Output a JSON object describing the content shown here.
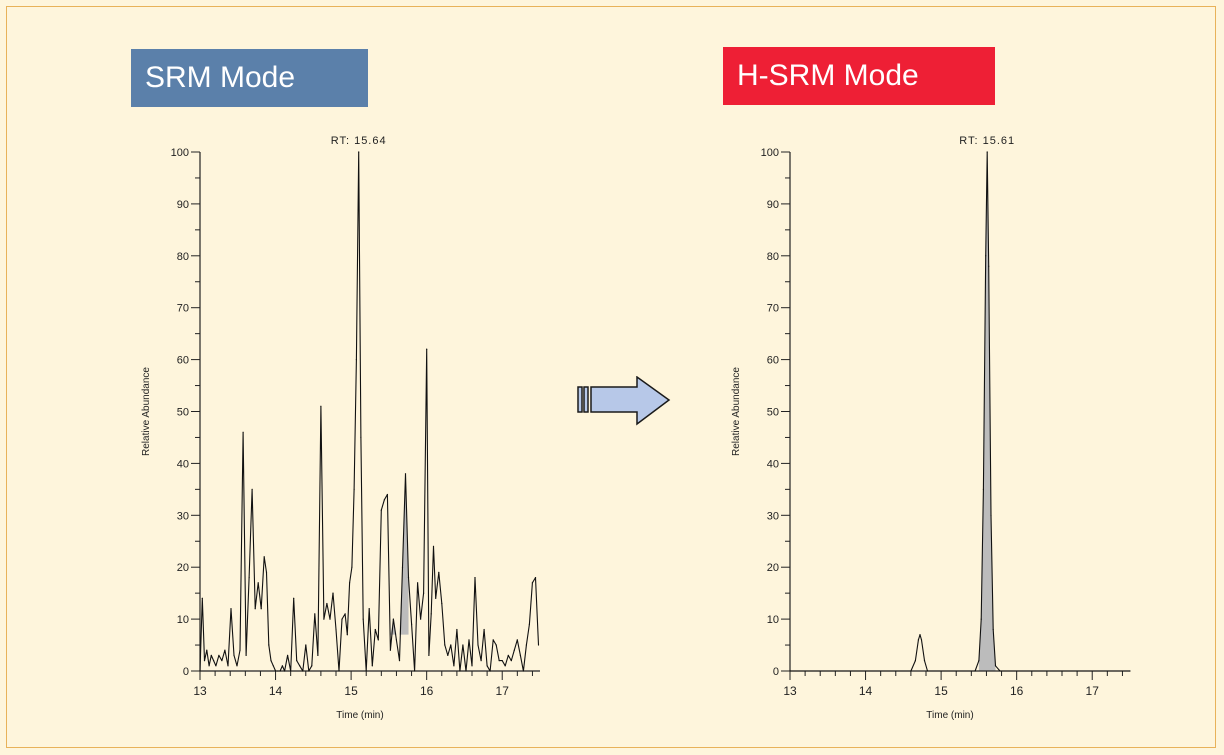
{
  "panels": {
    "left": {
      "title": "SRM Mode",
      "color": "#5b80aa"
    },
    "right": {
      "title": "H-SRM Mode",
      "color": "#ee1f35"
    }
  },
  "arrow": {
    "icon": "right-arrow-icon",
    "fill": "#b7c8e8",
    "stroke": "#1a1a1a"
  },
  "chart_data": [
    {
      "type": "line",
      "title": "",
      "annotation": "RT: 15.64",
      "xlabel": "Time (min)",
      "ylabel": "Relative Abundance",
      "xlim": [
        13,
        17.5
      ],
      "ylim": [
        0,
        100
      ],
      "x_ticks": [
        13,
        14,
        15,
        16,
        17
      ],
      "y_ticks": [
        0,
        10,
        20,
        30,
        40,
        50,
        60,
        70,
        80,
        90,
        100
      ],
      "shaded_peak": {
        "from": 15.5,
        "to": 15.76,
        "baseline": 7
      },
      "series": [
        {
          "x": [
            13.0,
            13.03,
            13.06,
            13.09,
            13.12,
            13.15,
            13.18,
            13.21,
            13.25,
            13.29,
            13.33,
            13.37,
            13.41,
            13.45,
            13.49,
            13.53,
            13.57,
            13.61,
            13.65,
            13.69,
            13.73,
            13.77,
            13.81,
            13.85,
            13.88,
            13.91,
            13.94,
            13.97,
            14.0,
            14.03,
            14.06,
            14.09,
            14.12,
            14.16,
            14.2,
            14.24,
            14.28,
            14.32,
            14.36,
            14.4,
            14.44,
            14.48,
            14.52,
            14.56,
            14.6,
            14.64,
            14.68,
            14.72,
            14.76,
            14.8,
            14.84,
            14.88,
            14.92,
            14.95,
            14.98,
            15.01,
            15.04,
            15.07,
            15.1,
            15.13,
            15.16,
            15.2,
            15.24,
            15.28,
            15.32,
            15.36,
            15.4,
            15.44,
            15.48,
            15.52,
            15.56,
            15.6,
            15.64,
            15.68,
            15.72,
            15.76,
            15.8,
            15.84,
            15.88,
            15.92,
            15.96,
            16.0,
            16.03,
            16.06,
            16.09,
            16.12,
            16.16,
            16.2,
            16.24,
            16.28,
            16.32,
            16.36,
            16.4,
            16.44,
            16.48,
            16.52,
            16.56,
            16.6,
            16.64,
            16.68,
            16.72,
            16.76,
            16.8,
            16.84,
            16.88,
            16.92,
            16.96,
            17.0,
            17.04,
            17.08,
            17.12,
            17.16,
            17.2,
            17.24,
            17.28,
            17.32,
            17.36,
            17.4,
            17.44,
            17.48
          ],
          "values": [
            0,
            14,
            2,
            4,
            1,
            3,
            2,
            1,
            3,
            2,
            4,
            1,
            12,
            3,
            1,
            4,
            46,
            3,
            18,
            35,
            12,
            17,
            12,
            22,
            19,
            5,
            2,
            1,
            0,
            0,
            0,
            1,
            0,
            3,
            0,
            14,
            2,
            1,
            0,
            5,
            0,
            1,
            11,
            3,
            51,
            10,
            13,
            10,
            15,
            8,
            0,
            10,
            11,
            7,
            17,
            20,
            35,
            60,
            100,
            45,
            10,
            0,
            12,
            1,
            8,
            6,
            31,
            33,
            34,
            4,
            10,
            6,
            2,
            20,
            38,
            18,
            9,
            0,
            17,
            10,
            15,
            62,
            3,
            11,
            24,
            14,
            19,
            13,
            5,
            3,
            5,
            1,
            8,
            0,
            5,
            0,
            6,
            1,
            18,
            5,
            2,
            8,
            1,
            0,
            6,
            5,
            2,
            2,
            1,
            3,
            2,
            4,
            6,
            3,
            0,
            5,
            9,
            17,
            18,
            5
          ],
          "shaded": [
            15.5,
            15.76
          ]
        }
      ]
    },
    {
      "type": "line",
      "title": "",
      "annotation": "RT: 15.61",
      "xlabel": "Time (min)",
      "ylabel": "Relative Abundance",
      "xlim": [
        13,
        17.5
      ],
      "ylim": [
        0,
        100
      ],
      "x_ticks": [
        13,
        14,
        15,
        16,
        17
      ],
      "y_ticks": [
        0,
        10,
        20,
        30,
        40,
        50,
        60,
        70,
        80,
        90,
        100
      ],
      "shaded_peak": {
        "from": 15.5,
        "to": 15.72,
        "baseline": 0
      },
      "series": [
        {
          "x": [
            13.0,
            14.6,
            14.66,
            14.7,
            14.72,
            14.74,
            14.78,
            14.82,
            15.45,
            15.5,
            15.53,
            15.56,
            15.59,
            15.61,
            15.63,
            15.66,
            15.69,
            15.72,
            15.78,
            17.5
          ],
          "values": [
            0,
            0,
            2,
            6,
            7,
            6,
            2,
            0,
            0,
            2,
            10,
            35,
            80,
            100,
            78,
            30,
            8,
            1,
            0,
            0
          ]
        }
      ]
    }
  ]
}
